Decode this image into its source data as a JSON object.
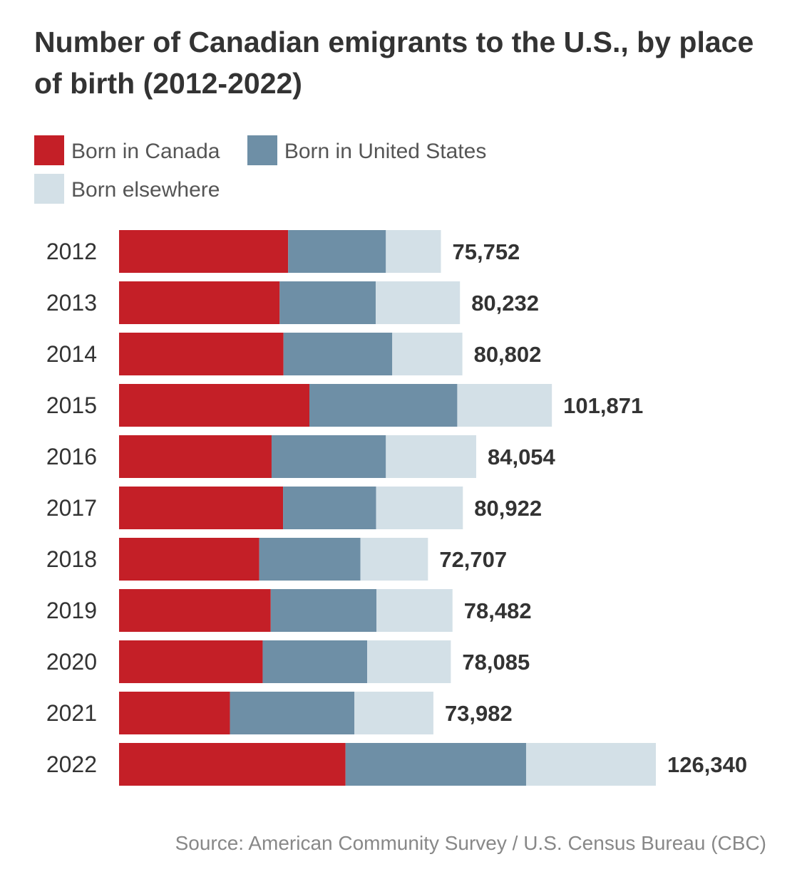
{
  "title": "Number of Canadian emigrants to the U.S., by place of birth (2012-2022)",
  "legend": [
    {
      "name": "Born in Canada",
      "color": "#c41f27"
    },
    {
      "name": "Born in United States",
      "color": "#6e8fa6"
    },
    {
      "name": "Born elsewhere",
      "color": "#d3e0e7"
    }
  ],
  "source": "Source: American Community Survey / U.S. Census Bureau (CBC)",
  "chart_data": {
    "type": "bar",
    "orientation": "horizontal",
    "stacked": true,
    "title": "Number of Canadian emigrants to the U.S., by place of birth (2012-2022)",
    "categories": [
      "2012",
      "2013",
      "2014",
      "2015",
      "2016",
      "2017",
      "2018",
      "2019",
      "2020",
      "2021",
      "2022"
    ],
    "totals": [
      75752,
      80232,
      80802,
      101871,
      84054,
      80922,
      72707,
      78482,
      78085,
      73982,
      126340
    ],
    "total_labels": [
      "75,752",
      "80,232",
      "80,802",
      "101,871",
      "84,054",
      "80,922",
      "72,707",
      "78,482",
      "78,085",
      "73,982",
      "126,340"
    ],
    "series": [
      {
        "name": "Born in Canada",
        "color": "#c41f27",
        "values": [
          39800,
          37800,
          38700,
          44800,
          35900,
          38600,
          33000,
          35700,
          33800,
          26100,
          53300
        ]
      },
      {
        "name": "Born in United States",
        "color": "#6e8fa6",
        "values": [
          23000,
          22600,
          25600,
          34800,
          26900,
          21900,
          23800,
          24900,
          24600,
          29300,
          42500
        ]
      },
      {
        "name": "Born elsewhere",
        "color": "#d3e0e7",
        "values": [
          12952,
          19832,
          16502,
          22271,
          21254,
          20422,
          15907,
          17882,
          19685,
          18582,
          30540
        ]
      }
    ],
    "xlim": [
      0,
      126340
    ],
    "grid": false,
    "legend_position": "top"
  }
}
